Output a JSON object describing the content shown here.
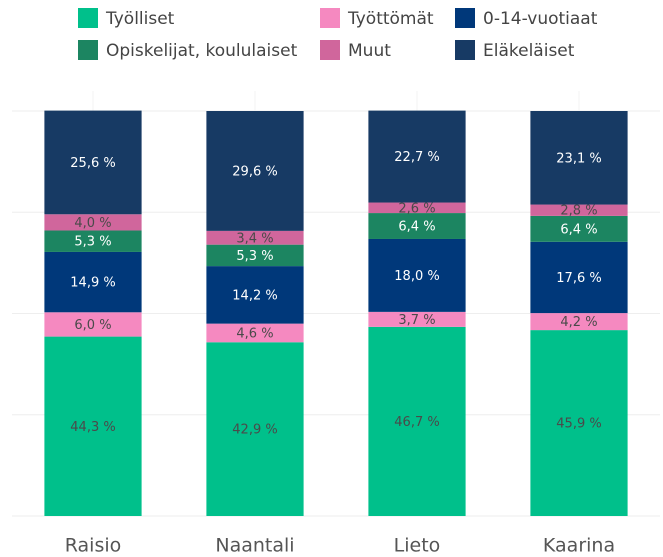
{
  "chart_data": {
    "type": "stacked_bar",
    "categories": [
      "Raisio",
      "Naantali",
      "Lieto",
      "Kaarina"
    ],
    "series": [
      {
        "name": "Työlliset",
        "color": "#00c08b",
        "values": [
          44.3,
          42.9,
          46.7,
          45.9
        ],
        "value_labels": [
          "44,3 %",
          "42,9 %",
          "46,7 %",
          "45,9 %"
        ]
      },
      {
        "name": "Työttömät",
        "color": "#f589c0",
        "values": [
          6.0,
          4.6,
          3.7,
          4.2
        ],
        "value_labels": [
          "6,0 %",
          "4,6 %",
          "3,7 %",
          "4,2 %"
        ]
      },
      {
        "name": "0-14-vuotiaat",
        "color": "#00387a",
        "values": [
          14.9,
          14.2,
          18.0,
          17.6
        ],
        "value_labels": [
          "14,9 %",
          "14,2 %",
          "18,0 %",
          "17,6 %"
        ]
      },
      {
        "name": "Opiskelijat, koululaiset",
        "color": "#1c8561",
        "values": [
          5.3,
          5.3,
          6.4,
          6.4
        ],
        "value_labels": [
          "5,3 %",
          "5,3 %",
          "6,4 %",
          "6,4 %"
        ]
      },
      {
        "name": "Muut",
        "color": "#d0669c",
        "values": [
          4.0,
          3.4,
          2.6,
          2.8
        ],
        "value_labels": [
          "4,0 %",
          "3,4 %",
          "2,6 %",
          "2,8 %"
        ]
      },
      {
        "name": "Eläkeläiset",
        "color": "#173a64",
        "values": [
          25.6,
          29.6,
          22.7,
          23.1
        ],
        "value_labels": [
          "25,6 %",
          "29,6 %",
          "22,7 %",
          "23,1 %"
        ]
      }
    ],
    "ylim": [
      0,
      100
    ],
    "yticks": [
      0,
      25,
      50,
      75,
      100
    ],
    "grid": true
  }
}
